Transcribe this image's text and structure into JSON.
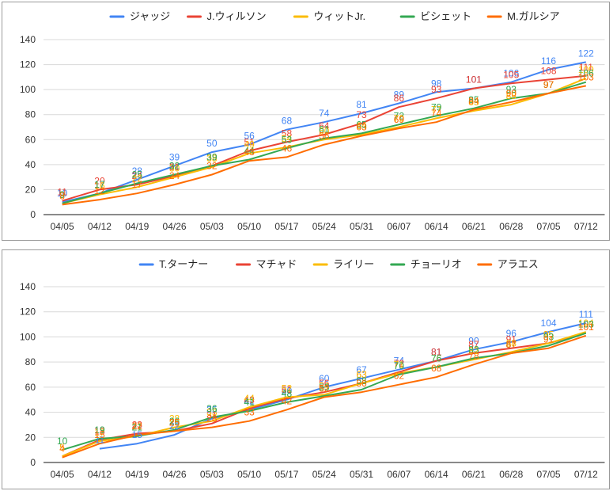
{
  "chart_data": [
    {
      "type": "line",
      "title": "",
      "xlabel": "",
      "ylabel": "",
      "ylim": [
        0,
        140
      ],
      "yticks": [
        0,
        20,
        40,
        60,
        80,
        100,
        120,
        140
      ],
      "grid": true,
      "legend": "top",
      "categories": [
        "04/05",
        "04/12",
        "04/19",
        "04/26",
        "05/03",
        "05/10",
        "05/17",
        "05/24",
        "05/31",
        "06/07",
        "06/14",
        "06/21",
        "06/28",
        "07/05",
        "07/12"
      ],
      "series": [
        {
          "name": "ジャッジ",
          "color": "#4285f4",
          "values": [
            10,
            17,
            28,
            39,
            50,
            56,
            68,
            74,
            81,
            89,
            98,
            101,
            106,
            116,
            122
          ]
        },
        {
          "name": "J.ウィルソン",
          "color": "#ea4335",
          "values": [
            11,
            20,
            24,
            31,
            39,
            51,
            58,
            64,
            73,
            86,
            93,
            101,
            105,
            108,
            111
          ]
        },
        {
          "name": "ウィットJr.",
          "color": "#fbbc04",
          "values": [
            9,
            16,
            22,
            30,
            38,
            49,
            54,
            60,
            64,
            70,
            77,
            83,
            88,
            97,
            109
          ]
        },
        {
          "name": "ビシェット",
          "color": "#34a853",
          "values": [
            9,
            17,
            25,
            32,
            39,
            44,
            53,
            61,
            65,
            72,
            79,
            85,
            93,
            97,
            106
          ]
        },
        {
          "name": "M.ガルシア",
          "color": "#ff6d01",
          "values": [
            8,
            12,
            17,
            24,
            32,
            43,
            46,
            56,
            63,
            69,
            74,
            84,
            90,
            97,
            103
          ]
        }
      ]
    },
    {
      "type": "line",
      "title": "",
      "xlabel": "",
      "ylabel": "",
      "ylim": [
        0,
        140
      ],
      "yticks": [
        0,
        20,
        40,
        60,
        80,
        100,
        120,
        140
      ],
      "grid": true,
      "legend": "top",
      "categories": [
        "04/05",
        "04/12",
        "04/19",
        "04/26",
        "05/03",
        "05/10",
        "05/17",
        "05/24",
        "05/31",
        "06/07",
        "06/14",
        "06/21",
        "06/28",
        "07/05",
        "07/12"
      ],
      "series": [
        {
          "name": "T.ターナー",
          "color": "#4285f4",
          "values": [
            null,
            11,
            15,
            22,
            35,
            42,
            50,
            60,
            67,
            74,
            81,
            90,
            96,
            104,
            111
          ]
        },
        {
          "name": "マチャド",
          "color": "#ea4335",
          "values": [
            5,
            18,
            23,
            25,
            31,
            43,
            51,
            56,
            63,
            72,
            81,
            87,
            91,
            95,
            103
          ]
        },
        {
          "name": "ライリー",
          "color": "#fbbc04",
          "values": [
            5,
            17,
            21,
            28,
            33,
            44,
            52,
            54,
            63,
            71,
            76,
            82,
            88,
            95,
            104
          ]
        },
        {
          "name": "チョーリオ",
          "color": "#34a853",
          "values": [
            10,
            19,
            21,
            26,
            36,
            41,
            48,
            53,
            58,
            70,
            76,
            83,
            87,
            93,
            103
          ]
        },
        {
          "name": "アラエス",
          "color": "#ff6d01",
          "values": [
            4,
            15,
            22,
            25,
            28,
            33,
            42,
            52,
            56,
            62,
            68,
            78,
            87,
            91,
            101
          ]
        }
      ]
    }
  ]
}
